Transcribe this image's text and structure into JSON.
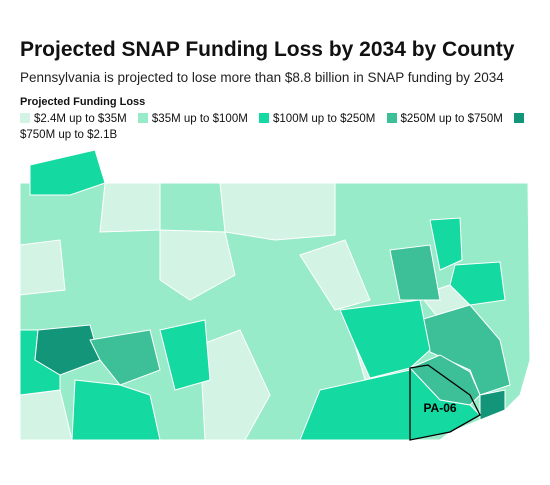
{
  "title": "Projected SNAP Funding Loss by 2034 by County",
  "subtitle": "Pennsylvania is projected to lose more than $8.8 billion in SNAP funding by 2034",
  "legend": {
    "title": "Projected Funding Loss",
    "items": [
      {
        "label": "$2.4M up to $35M",
        "color": "#d3f4e4"
      },
      {
        "label": "$35M up to $100M",
        "color": "#98ebc8"
      },
      {
        "label": "$100M up to $250M",
        "color": "#14d9a0"
      },
      {
        "label": "$250M up to $750M",
        "color": "#3dbf98"
      },
      {
        "label": "$750M up to $2.1B",
        "color": "#13957a"
      }
    ]
  },
  "annotation": "PA-06"
}
